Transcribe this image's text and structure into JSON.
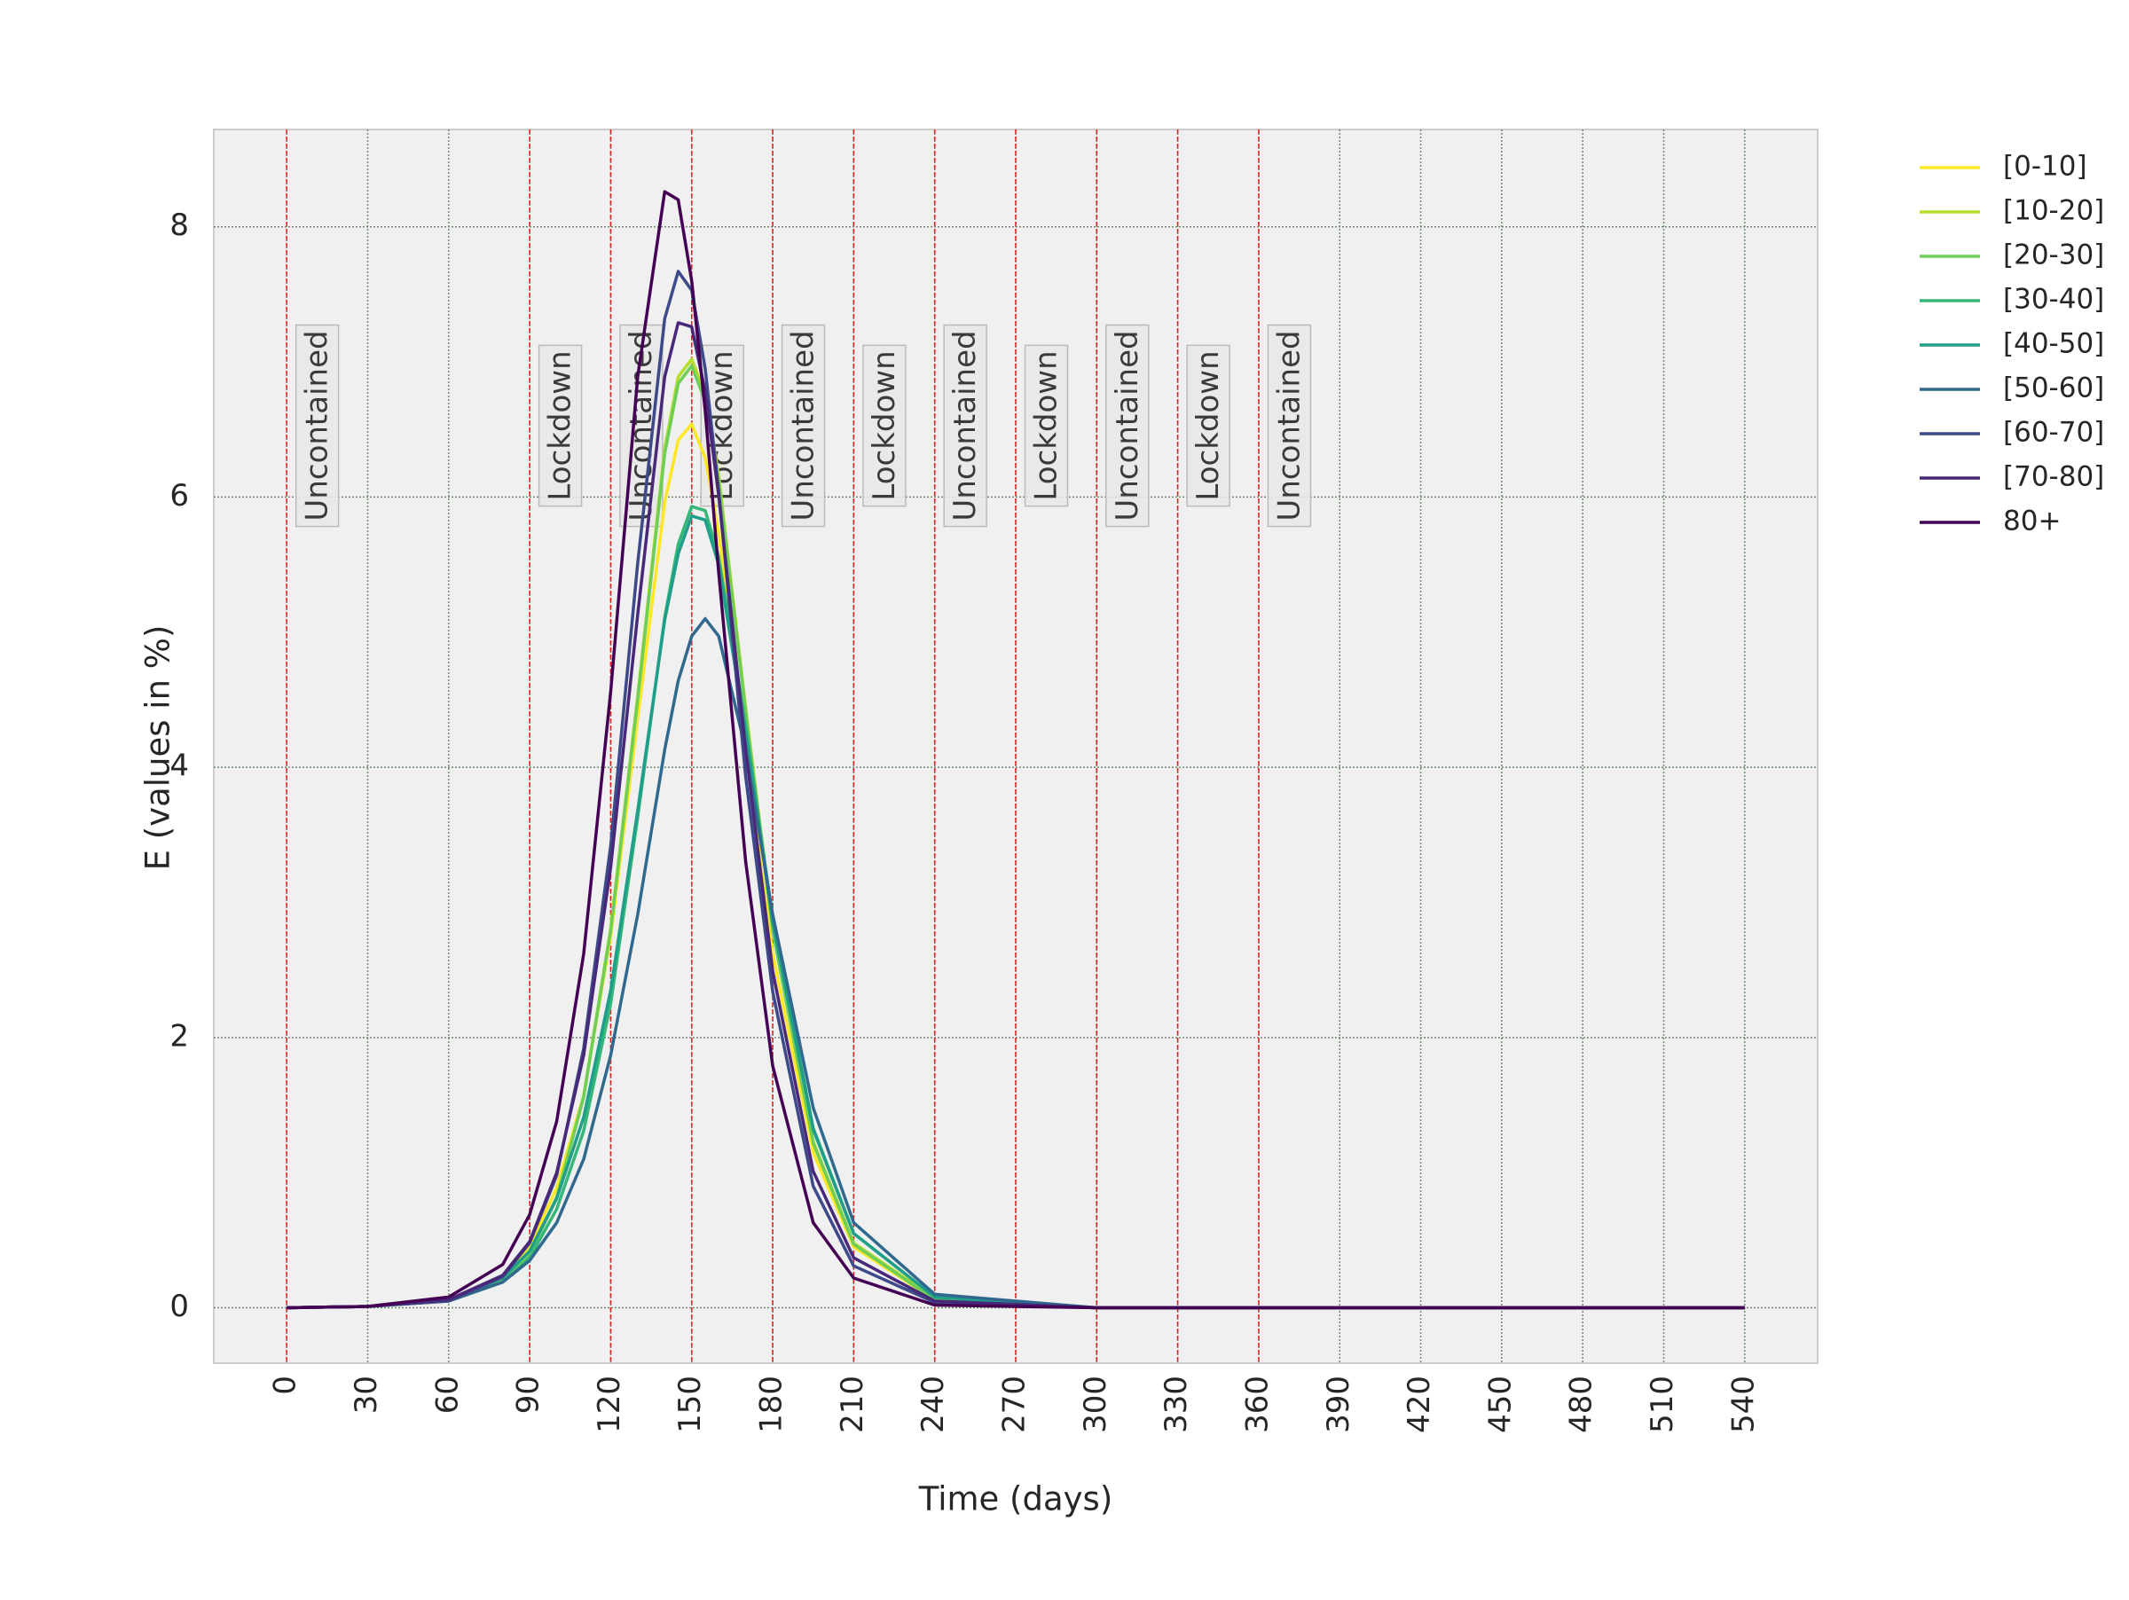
{
  "chart_data": {
    "type": "line",
    "xlabel": "Time (days)",
    "ylabel": "E (values in %)",
    "xlim": [
      -27,
      567
    ],
    "ylim": [
      -0.41,
      8.72
    ],
    "xticks": [
      0,
      30,
      60,
      90,
      120,
      150,
      180,
      210,
      240,
      270,
      300,
      330,
      360,
      390,
      420,
      450,
      480,
      510,
      540
    ],
    "yticks": [
      0,
      2,
      4,
      6,
      8
    ],
    "grid": true,
    "legend": "outside right",
    "x": [
      0,
      30,
      60,
      80,
      90,
      100,
      110,
      120,
      130,
      140,
      145,
      150,
      155,
      160,
      170,
      180,
      195,
      210,
      240,
      300,
      540
    ],
    "series": [
      {
        "name": "[0-10]",
        "color": "#fde725",
        "values": [
          0,
          0.01,
          0.06,
          0.22,
          0.45,
          0.89,
          1.57,
          2.75,
          4.36,
          5.96,
          6.42,
          6.54,
          6.29,
          5.74,
          4.14,
          2.62,
          1.15,
          0.45,
          0.06,
          0,
          0
        ]
      },
      {
        "name": "[10-20]",
        "color": "#b5de2b",
        "values": [
          0,
          0.01,
          0.05,
          0.2,
          0.4,
          0.82,
          1.57,
          2.81,
          4.53,
          6.36,
          6.89,
          7.02,
          6.76,
          6.16,
          4.44,
          2.81,
          1.23,
          0.48,
          0.07,
          0,
          0
        ]
      },
      {
        "name": "[20-30]",
        "color": "#6ece58",
        "values": [
          0,
          0.01,
          0.05,
          0.2,
          0.4,
          0.81,
          1.56,
          2.79,
          4.5,
          6.32,
          6.84,
          6.97,
          6.71,
          6.11,
          4.41,
          2.79,
          1.22,
          0.47,
          0.06,
          0,
          0
        ]
      },
      {
        "name": "[30-40]",
        "color": "#35b779",
        "values": [
          0,
          0.01,
          0.05,
          0.19,
          0.37,
          0.73,
          1.31,
          2.25,
          3.63,
          5.11,
          5.65,
          5.93,
          5.9,
          5.56,
          4.31,
          2.88,
          1.33,
          0.55,
          0.08,
          0,
          0
        ]
      },
      {
        "name": "[40-50]",
        "color": "#1f9e89",
        "values": [
          0,
          0.01,
          0.06,
          0.22,
          0.42,
          0.81,
          1.41,
          2.35,
          3.68,
          5.09,
          5.58,
          5.86,
          5.83,
          5.5,
          4.26,
          2.85,
          1.32,
          0.55,
          0.08,
          0,
          0
        ]
      },
      {
        "name": "[50-60]",
        "color": "#31688e",
        "values": [
          0,
          0.01,
          0.05,
          0.19,
          0.35,
          0.63,
          1.1,
          1.87,
          2.91,
          4.13,
          4.64,
          4.97,
          5.1,
          4.97,
          4.13,
          2.91,
          1.48,
          0.63,
          0.1,
          0,
          0
        ]
      },
      {
        "name": "[60-70]",
        "color": "#3e4989",
        "values": [
          0,
          0.01,
          0.05,
          0.23,
          0.48,
          0.98,
          1.92,
          3.42,
          5.51,
          7.32,
          7.67,
          7.53,
          6.95,
          6.04,
          3.93,
          2.34,
          0.9,
          0.31,
          0.04,
          0,
          0
        ]
      },
      {
        "name": "[70-80]",
        "color": "#482878",
        "values": [
          0,
          0.01,
          0.06,
          0.24,
          0.49,
          1.0,
          1.87,
          3.26,
          5.13,
          6.89,
          7.29,
          7.26,
          6.78,
          6.01,
          4.13,
          2.49,
          1.01,
          0.37,
          0.05,
          0,
          0
        ]
      },
      {
        "name": "80+",
        "color": "#440154",
        "values": [
          0,
          0.01,
          0.08,
          0.32,
          0.69,
          1.38,
          2.62,
          4.56,
          6.89,
          8.26,
          8.2,
          7.6,
          6.64,
          5.44,
          3.3,
          1.79,
          0.63,
          0.22,
          0.02,
          0,
          0
        ]
      }
    ],
    "annotations": [
      {
        "x": 0,
        "text": "Uncontained"
      },
      {
        "x": 90,
        "text": "Lockdown"
      },
      {
        "x": 120,
        "text": "Uncontained"
      },
      {
        "x": 150,
        "text": "Lockdown"
      },
      {
        "x": 180,
        "text": "Uncontained"
      },
      {
        "x": 210,
        "text": "Lockdown"
      },
      {
        "x": 240,
        "text": "Uncontained"
      },
      {
        "x": 270,
        "text": "Lockdown"
      },
      {
        "x": 300,
        "text": "Uncontained"
      },
      {
        "x": 330,
        "text": "Lockdown"
      },
      {
        "x": 360,
        "text": "Uncontained"
      }
    ]
  }
}
